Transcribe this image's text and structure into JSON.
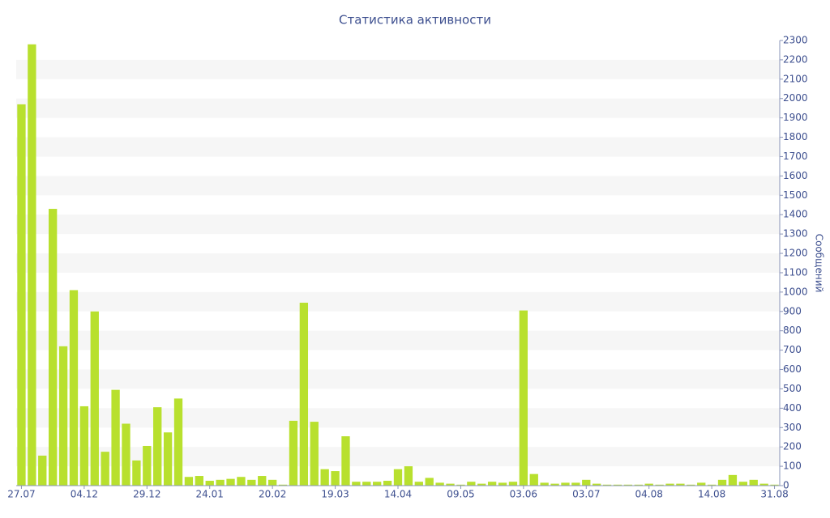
{
  "chart_data": {
    "type": "bar",
    "title": "Статистика активности",
    "y_label": "Сообщений",
    "categories": [
      "27.07",
      null,
      null,
      null,
      null,
      null,
      "04.12",
      null,
      null,
      null,
      null,
      null,
      "29.12",
      null,
      null,
      null,
      null,
      null,
      "24.01",
      null,
      null,
      null,
      null,
      null,
      "20.02",
      null,
      null,
      null,
      null,
      null,
      "19.03",
      null,
      null,
      null,
      null,
      null,
      "14.04",
      null,
      null,
      null,
      null,
      null,
      "09.05",
      null,
      null,
      null,
      null,
      null,
      "03.06",
      null,
      null,
      null,
      null,
      null,
      "03.07",
      null,
      null,
      null,
      null,
      null,
      "04.08",
      null,
      null,
      null,
      null,
      null,
      "14.08",
      null,
      null,
      null,
      null,
      null,
      "31.08"
    ],
    "values": [
      1970,
      2280,
      155,
      1430,
      720,
      1010,
      410,
      900,
      175,
      495,
      320,
      130,
      205,
      405,
      275,
      450,
      45,
      50,
      25,
      30,
      35,
      45,
      30,
      50,
      30,
      5,
      335,
      945,
      330,
      85,
      75,
      255,
      20,
      20,
      20,
      25,
      85,
      100,
      20,
      40,
      15,
      10,
      5,
      20,
      10,
      20,
      15,
      20,
      905,
      60,
      15,
      10,
      15,
      15,
      30,
      10,
      5,
      5,
      5,
      5,
      10,
      5,
      10,
      10,
      5,
      15,
      5,
      30,
      55,
      20,
      30,
      10,
      5
    ],
    "color": "#b8e02e",
    "ylim": [
      0,
      2300
    ],
    "yticks": [
      0,
      100,
      200,
      300,
      400,
      500,
      600,
      700,
      800,
      900,
      1000,
      1100,
      1200,
      1300,
      1400,
      1500,
      1600,
      1700,
      1800,
      1900,
      2000,
      2100,
      2200,
      2300
    ],
    "grid": "banded",
    "y_axis_side": "right"
  }
}
